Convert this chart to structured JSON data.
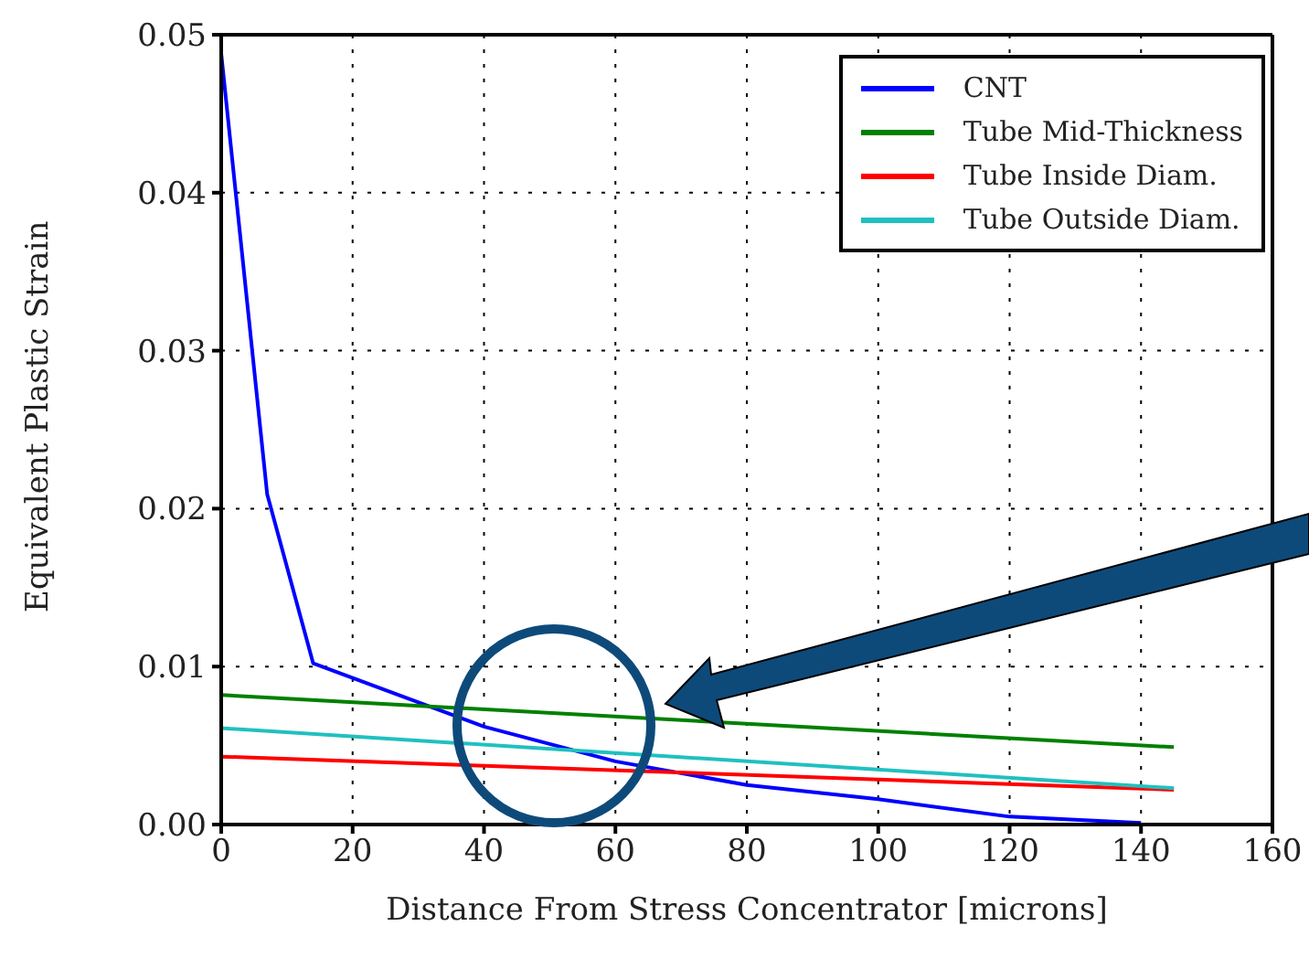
{
  "chart_data": {
    "type": "line",
    "xlabel": "Distance From Stress Concentrator [microns]",
    "ylabel": "Equivalent Plastic Strain",
    "xlim": [
      0,
      160
    ],
    "xticks": [
      0,
      20,
      40,
      60,
      80,
      100,
      120,
      140,
      160
    ],
    "ylim": [
      0,
      0.05
    ],
    "yticks": [
      {
        "value": 0,
        "label": "0.00"
      },
      {
        "value": 0.01,
        "label": "0.01"
      },
      {
        "value": 0.02,
        "label": "0.02"
      },
      {
        "value": 0.03,
        "label": "0.03"
      },
      {
        "value": 0.04,
        "label": "0.04"
      },
      {
        "value": 0.05,
        "label": "0.05"
      }
    ],
    "grid": true,
    "legend": "top right",
    "marker": "none",
    "line_style": "solid",
    "series": [
      {
        "name": "CNT",
        "color": "#0000ff",
        "x": [
          0,
          7,
          14,
          40,
          60,
          80,
          100,
          120,
          140
        ],
        "values": [
          0.0488,
          0.0209,
          0.0102,
          0.0062,
          0.004,
          0.0025,
          0.0016,
          0.0005,
          0.0001
        ]
      },
      {
        "name": "Tube Mid-Thickness",
        "color": "#008000",
        "x": [
          0,
          145
        ],
        "values": [
          0.0082,
          0.0049
        ]
      },
      {
        "name": "Tube Inside Diam.",
        "color": "#ff0000",
        "x": [
          0,
          145
        ],
        "values": [
          0.0043,
          0.0022
        ]
      },
      {
        "name": "Tube Outside Diam.",
        "color": "#20c0c0",
        "x": [
          0,
          145
        ],
        "values": [
          0.0061,
          0.0023
        ]
      }
    ]
  }
}
